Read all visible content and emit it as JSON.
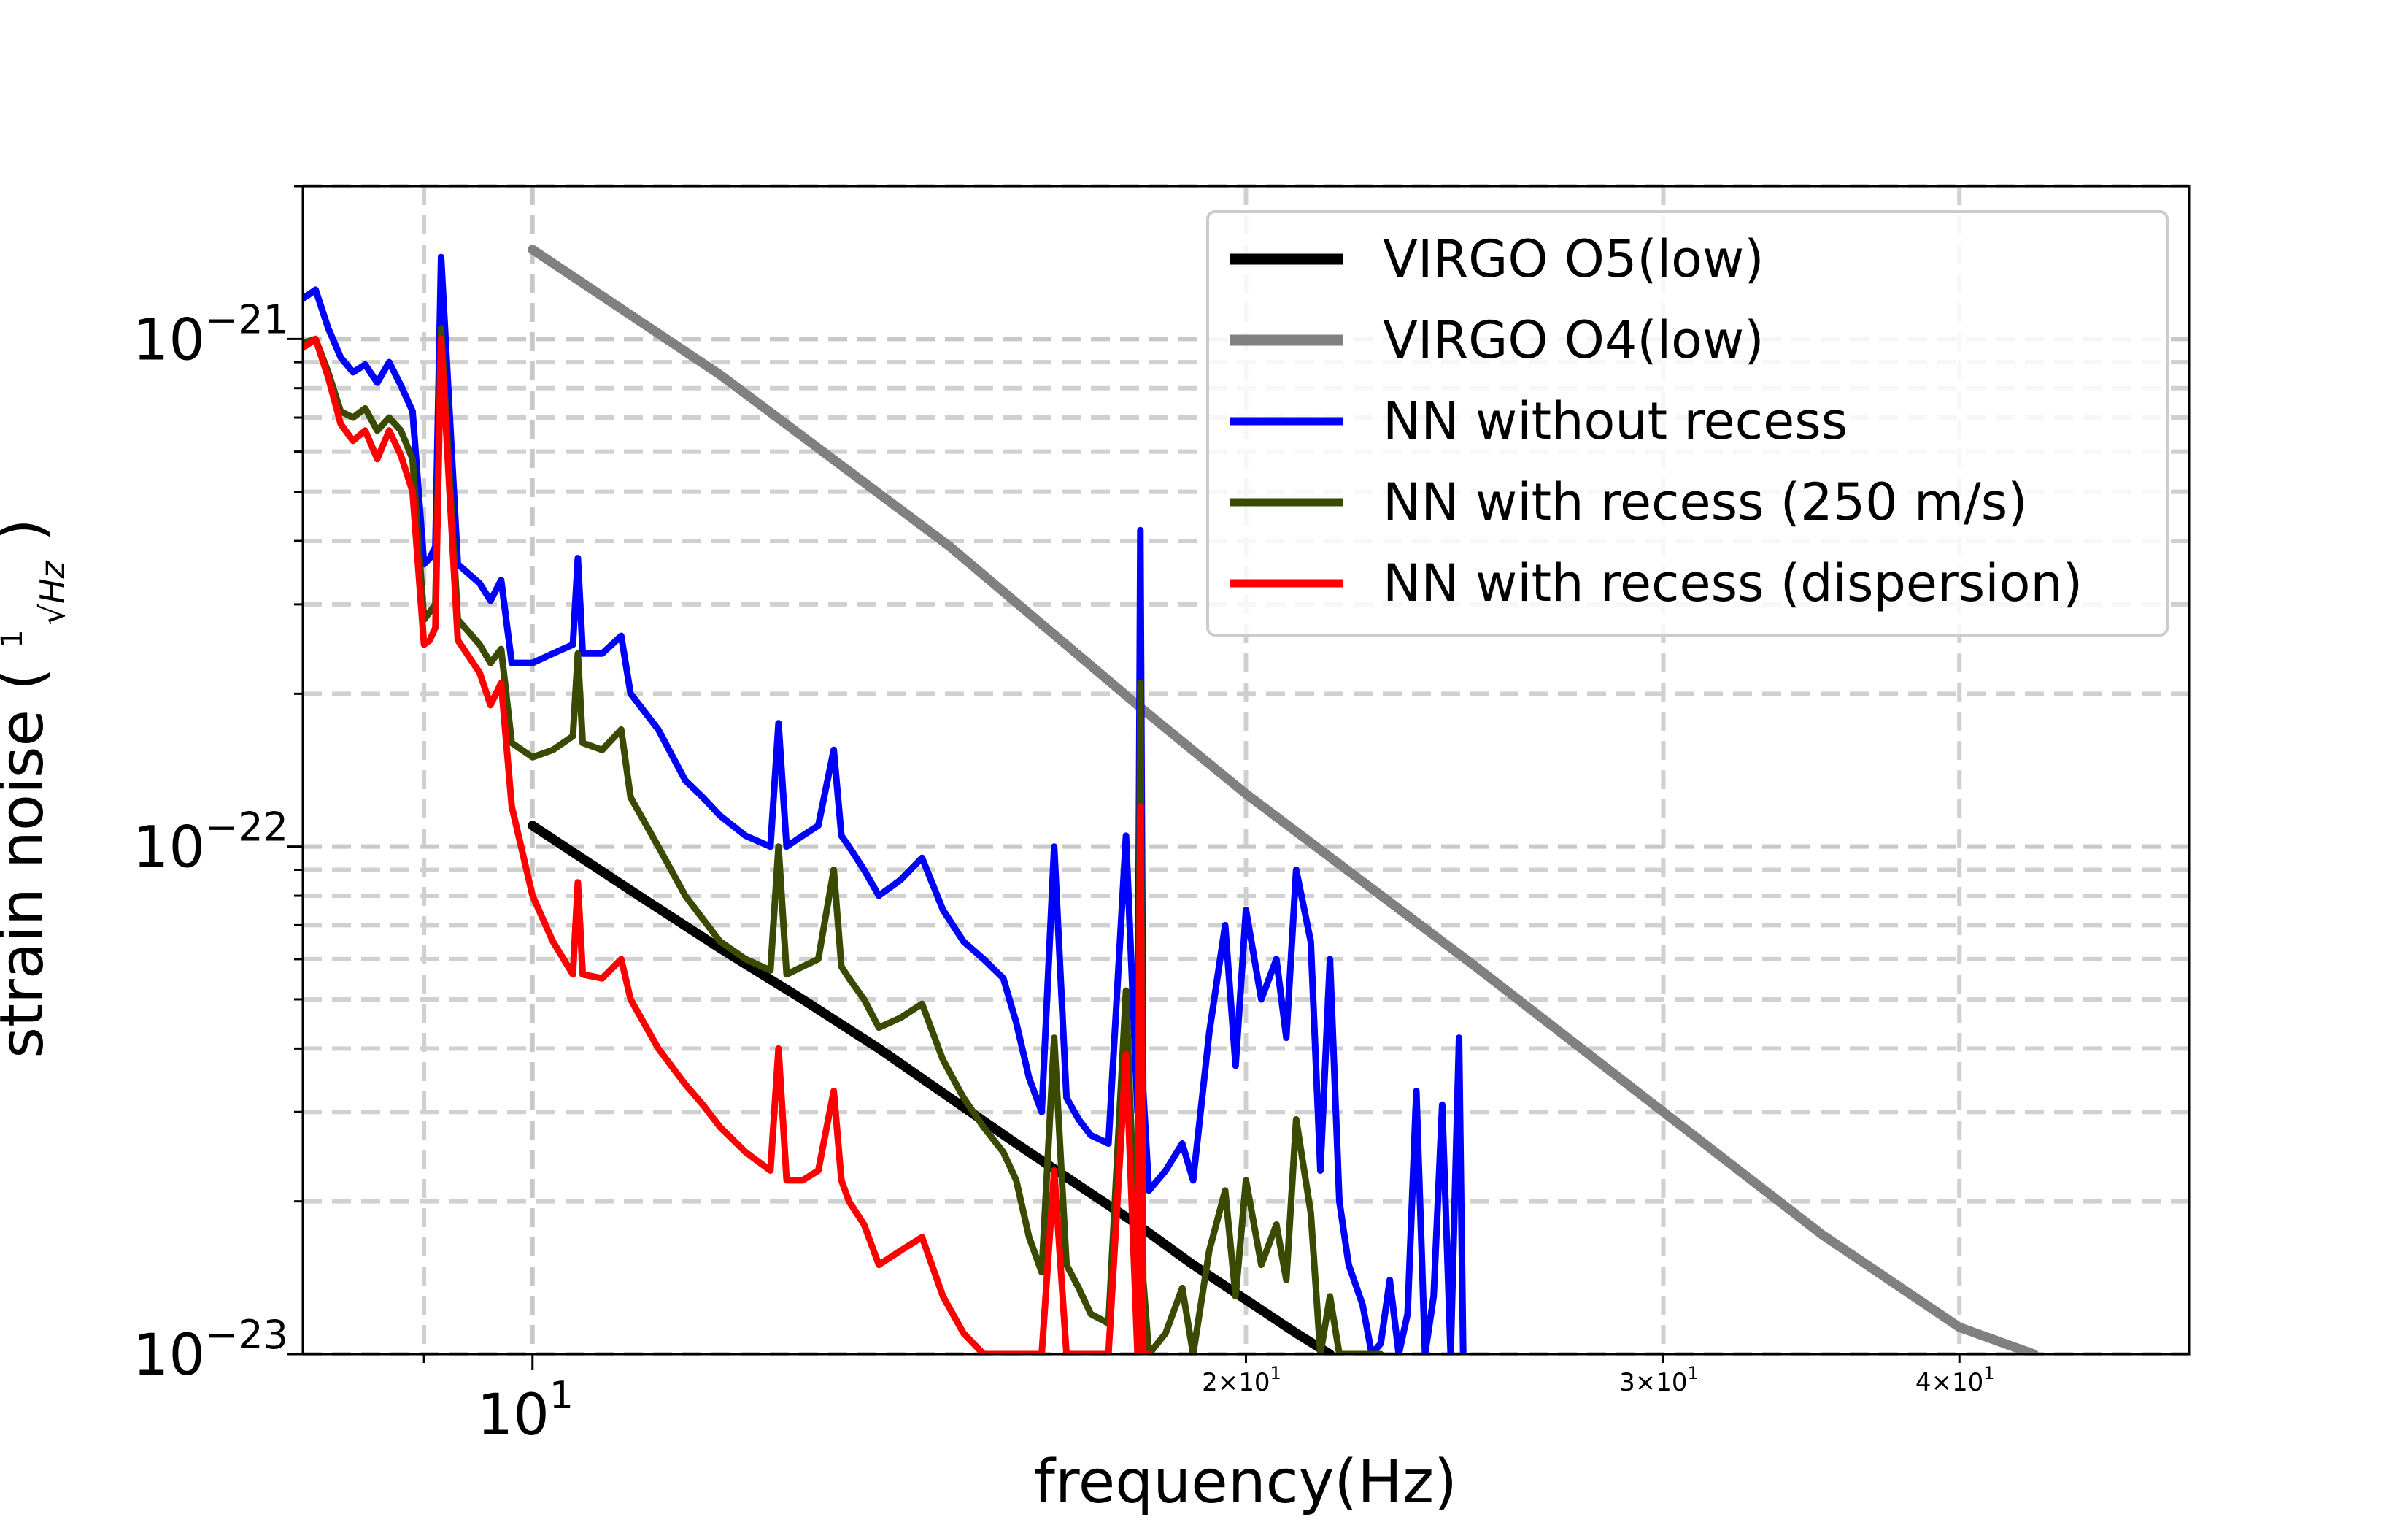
{
  "chart_data": {
    "type": "line",
    "title": "",
    "xlabel": "frequency(Hz)",
    "ylabel": "strain noise",
    "ylabel_unit_numerator": "1",
    "ylabel_unit_denominator": "√Hz",
    "xscale": "log",
    "yscale": "log",
    "xlim": [
      8,
      50
    ],
    "ylim": [
      1e-23,
      2e-21
    ],
    "grid": true,
    "legend_position": "upper-right",
    "x_major_ticks": [
      {
        "value": 10,
        "base": "10",
        "exp": "1"
      }
    ],
    "x_minor_ticks": [
      {
        "value": 20,
        "mant": "2×10",
        "exp": "1"
      },
      {
        "value": 30,
        "mant": "3×10",
        "exp": "1"
      },
      {
        "value": 40,
        "mant": "4×10",
        "exp": "1"
      }
    ],
    "y_major_ticks": [
      {
        "value": 1e-21,
        "base": "10",
        "exp": "−21"
      },
      {
        "value": 1e-22,
        "base": "10",
        "exp": "−22"
      },
      {
        "value": 1e-23,
        "base": "10",
        "exp": "−23"
      }
    ],
    "series": [
      {
        "name": "VIRGO O5(low)",
        "color": "#000000",
        "width": 13,
        "x": [
          10,
          11,
          12,
          13,
          14,
          15,
          16,
          17,
          18,
          19,
          20,
          21,
          21.7
        ],
        "y": [
          1.1e-22,
          8.2e-23,
          6.3e-23,
          5e-23,
          4e-23,
          3.2e-23,
          2.6e-23,
          2.15e-23,
          1.8e-23,
          1.5e-23,
          1.28e-23,
          1.1e-23,
          1e-23
        ]
      },
      {
        "name": "VIRGO O4(low)",
        "color": "#808080",
        "width": 13,
        "x": [
          10,
          12,
          15,
          18,
          20,
          25,
          30,
          35,
          40,
          43
        ],
        "y": [
          1.5e-21,
          8.5e-22,
          3.9e-22,
          1.9e-22,
          1.27e-22,
          5.8e-23,
          3e-23,
          1.72e-23,
          1.13e-23,
          1e-23
        ]
      },
      {
        "name": "NN without recess",
        "color": "#0000ff",
        "width": 9,
        "x": [
          8.0,
          8.1,
          8.2,
          8.3,
          8.4,
          8.5,
          8.6,
          8.7,
          8.8,
          8.9,
          9.0,
          9.05,
          9.1,
          9.15,
          9.3,
          9.5,
          9.6,
          9.7,
          9.8,
          10.0,
          10.2,
          10.4,
          10.45,
          10.5,
          10.7,
          10.9,
          11.0,
          11.3,
          11.6,
          11.8,
          12.0,
          12.3,
          12.6,
          12.7,
          12.8,
          13.0,
          13.2,
          13.4,
          13.5,
          13.6,
          13.8,
          14.0,
          14.3,
          14.6,
          14.9,
          15.2,
          15.5,
          15.8,
          16.0,
          16.2,
          16.4,
          16.6,
          16.8,
          17.0,
          17.2,
          17.5,
          17.8,
          18.0,
          18.05,
          18.1,
          18.2,
          18.5,
          18.8,
          19.0,
          19.3,
          19.6,
          19.8,
          20.0,
          20.3,
          20.6,
          20.8,
          21.0,
          21.3,
          21.5,
          21.7,
          21.9,
          22.1,
          22.4,
          22.6,
          22.8,
          23.0,
          23.2,
          23.4,
          23.6,
          23.8,
          24.0,
          24.2,
          24.4,
          24.6,
          24.7
        ],
        "y": [
          1.2e-21,
          1.25e-21,
          1.05e-21,
          9.2e-22,
          8.6e-22,
          8.9e-22,
          8.2e-22,
          9e-22,
          8.1e-22,
          7.2e-22,
          3.6e-22,
          3.7e-22,
          3.9e-22,
          1.45e-21,
          3.6e-22,
          3.3e-22,
          3.05e-22,
          3.35e-22,
          2.3e-22,
          2.3e-22,
          2.4e-22,
          2.5e-22,
          3.7e-22,
          2.4e-22,
          2.4e-22,
          2.6e-22,
          2e-22,
          1.7e-22,
          1.35e-22,
          1.25e-22,
          1.15e-22,
          1.05e-22,
          1e-22,
          1.75e-22,
          1e-22,
          1.05e-22,
          1.1e-22,
          1.55e-22,
          1.05e-22,
          1e-22,
          9e-23,
          8e-23,
          8.6e-23,
          9.5e-23,
          7.5e-23,
          6.5e-23,
          6e-23,
          5.5e-23,
          4.5e-23,
          3.5e-23,
          3e-23,
          1e-22,
          3.2e-23,
          2.9e-23,
          2.7e-23,
          2.6e-23,
          1.05e-22,
          3e-23,
          4.2e-22,
          3.3e-23,
          2.1e-23,
          2.3e-23,
          2.6e-23,
          2.2e-23,
          4.3e-23,
          7e-23,
          3.7e-23,
          7.5e-23,
          5e-23,
          6e-23,
          4.2e-23,
          9e-23,
          6.5e-23,
          2.3e-23,
          6e-23,
          2e-23,
          1.5e-23,
          1.25e-23,
          1e-23,
          1.05e-23,
          1.4e-23,
          1e-23,
          1.2e-23,
          3.3e-23,
          1e-23,
          1.3e-23,
          3.1e-23,
          1e-23,
          4.2e-23,
          1e-23
        ]
      },
      {
        "name": "NN with recess (250 m/s)",
        "color": "#3a4a00",
        "width": 9,
        "x": [
          8.0,
          8.1,
          8.2,
          8.3,
          8.4,
          8.5,
          8.6,
          8.7,
          8.8,
          8.9,
          9.0,
          9.05,
          9.1,
          9.15,
          9.3,
          9.5,
          9.6,
          9.7,
          9.8,
          10.0,
          10.2,
          10.4,
          10.45,
          10.5,
          10.7,
          10.9,
          11.0,
          11.3,
          11.6,
          11.8,
          12.0,
          12.3,
          12.6,
          12.7,
          12.8,
          13.0,
          13.2,
          13.4,
          13.5,
          13.6,
          13.8,
          14.0,
          14.3,
          14.6,
          14.9,
          15.2,
          15.5,
          15.8,
          16.0,
          16.2,
          16.4,
          16.6,
          16.8,
          17.0,
          17.2,
          17.5,
          17.8,
          18.0,
          18.05,
          18.1,
          18.2,
          18.5,
          18.8,
          19.0,
          19.3,
          19.6,
          19.8,
          20.0,
          20.3,
          20.6,
          20.8,
          21.0,
          21.3,
          21.5,
          21.7,
          21.9,
          22.1,
          22.4,
          22.6,
          22.8
        ],
        "y": [
          9.8e-22,
          1e-21,
          8.6e-22,
          7.2e-22,
          7e-22,
          7.3e-22,
          6.6e-22,
          7e-22,
          6.6e-22,
          5.8e-22,
          2.8e-22,
          2.9e-22,
          3e-22,
          1.05e-21,
          2.8e-22,
          2.5e-22,
          2.3e-22,
          2.45e-22,
          1.6e-22,
          1.5e-22,
          1.55e-22,
          1.65e-22,
          2.4e-22,
          1.6e-22,
          1.55e-22,
          1.7e-22,
          1.25e-22,
          1e-22,
          8e-23,
          7.2e-23,
          6.5e-23,
          6e-23,
          5.7e-23,
          1e-22,
          5.6e-23,
          5.8e-23,
          6e-23,
          9e-23,
          5.8e-23,
          5.5e-23,
          5e-23,
          4.4e-23,
          4.6e-23,
          4.9e-23,
          3.8e-23,
          3.2e-23,
          2.8e-23,
          2.5e-23,
          2.2e-23,
          1.7e-23,
          1.45e-23,
          4.2e-23,
          1.5e-23,
          1.35e-23,
          1.2e-23,
          1.15e-23,
          5.2e-23,
          1.3e-23,
          2.1e-22,
          1.4e-23,
          1e-23,
          1.1e-23,
          1.35e-23,
          1e-23,
          1.6e-23,
          2.1e-23,
          1.3e-23,
          2.2e-23,
          1.5e-23,
          1.8e-23,
          1.4e-23,
          2.9e-23,
          1.9e-23,
          1e-23,
          1.3e-23,
          1e-23,
          1e-23,
          1e-23,
          1e-23,
          1e-23
        ]
      },
      {
        "name": "NN with recess (dispersion)",
        "color": "#ff0000",
        "width": 9,
        "x": [
          8.0,
          8.1,
          8.2,
          8.3,
          8.4,
          8.5,
          8.6,
          8.7,
          8.8,
          8.9,
          9.0,
          9.05,
          9.1,
          9.15,
          9.3,
          9.5,
          9.6,
          9.7,
          9.8,
          10.0,
          10.2,
          10.4,
          10.45,
          10.5,
          10.7,
          10.9,
          11.0,
          11.3,
          11.6,
          11.8,
          12.0,
          12.3,
          12.6,
          12.7,
          12.8,
          13.0,
          13.2,
          13.4,
          13.5,
          13.6,
          13.8,
          14.0,
          14.3,
          14.6,
          14.9,
          15.2,
          15.5,
          15.8,
          16.0,
          16.2,
          16.4,
          16.6,
          16.8,
          17.0,
          17.2,
          17.5,
          17.8,
          18.0,
          18.05,
          18.1,
          18.2
        ],
        "y": [
          9.6e-22,
          1e-21,
          8.4e-22,
          6.8e-22,
          6.3e-22,
          6.6e-22,
          5.8e-22,
          6.6e-22,
          5.9e-22,
          5e-22,
          2.5e-22,
          2.55e-22,
          2.7e-22,
          1e-21,
          2.55e-22,
          2.2e-22,
          1.9e-22,
          2.1e-22,
          1.2e-22,
          8e-23,
          6.5e-23,
          5.6e-23,
          8.5e-23,
          5.6e-23,
          5.5e-23,
          6e-23,
          5e-23,
          4e-23,
          3.4e-23,
          3.1e-23,
          2.8e-23,
          2.5e-23,
          2.3e-23,
          4e-23,
          2.2e-23,
          2.2e-23,
          2.3e-23,
          3.3e-23,
          2.2e-23,
          2e-23,
          1.8e-23,
          1.5e-23,
          1.6e-23,
          1.7e-23,
          1.3e-23,
          1.1e-23,
          1e-23,
          1e-23,
          1e-23,
          1e-23,
          1e-23,
          2.3e-23,
          1e-23,
          1e-23,
          1e-23,
          1e-23,
          3.9e-23,
          1e-23,
          1.2e-22,
          1e-23,
          1e-23
        ]
      }
    ]
  }
}
